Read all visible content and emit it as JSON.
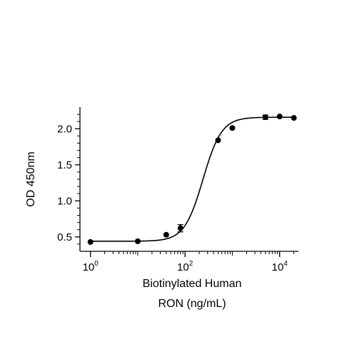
{
  "chart_data": {
    "type": "scatter",
    "xscale": "log",
    "xlabel_lines": [
      "Biotinylated Human",
      "RON (ng/mL)"
    ],
    "ylabel": "OD 450nm",
    "xlim": [
      0.6,
      25000
    ],
    "ylim": [
      0.3,
      2.3
    ],
    "x_ticks": [
      {
        "value": 1,
        "base": "10",
        "exp": "0"
      },
      {
        "value": 100,
        "base": "10",
        "exp": "2"
      },
      {
        "value": 10000,
        "base": "10",
        "exp": "4"
      }
    ],
    "y_ticks": [
      {
        "value": 0.5,
        "label": "0.5"
      },
      {
        "value": 1.0,
        "label": "1.0"
      },
      {
        "value": 1.5,
        "label": "1.5"
      },
      {
        "value": 2.0,
        "label": "2.0"
      }
    ],
    "series": [
      {
        "points": [
          {
            "x": 1,
            "y": 0.43,
            "err": 0
          },
          {
            "x": 10,
            "y": 0.44,
            "err": 0
          },
          {
            "x": 40,
            "y": 0.53,
            "err": 0
          },
          {
            "x": 80,
            "y": 0.62,
            "err": 0.05
          },
          {
            "x": 500,
            "y": 1.84,
            "err": 0
          },
          {
            "x": 1000,
            "y": 2.01,
            "err": 0
          },
          {
            "x": 5000,
            "y": 2.16,
            "err": 0.03
          },
          {
            "x": 10000,
            "y": 2.17,
            "err": 0
          },
          {
            "x": 20000,
            "y": 2.15,
            "err": 0
          }
        ],
        "fit": {
          "bottom": 0.44,
          "top": 2.16,
          "ec50": 240,
          "hill": 2.2
        }
      }
    ],
    "grid": false,
    "legend": "none"
  }
}
